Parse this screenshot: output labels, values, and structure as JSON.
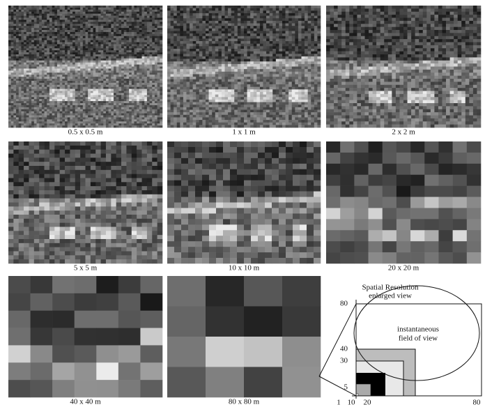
{
  "panels": [
    {
      "caption": "0.5 x 0.5 m"
    },
    {
      "caption": "1 x 1 m"
    },
    {
      "caption": "2 x 2 m"
    },
    {
      "caption": "5 x 5 m"
    },
    {
      "caption": "10 x 10 m"
    },
    {
      "caption": "20 x 20 m"
    },
    {
      "caption": "40 x 40 m"
    },
    {
      "caption": "80 x 80 m"
    }
  ],
  "diagram": {
    "title": "Spatial Resolution",
    "subtitle": "enlarged view",
    "ifov_label": [
      "instantaneous",
      "field of view"
    ],
    "y_labels": [
      "80",
      "40",
      "30",
      "5"
    ],
    "x_labels": [
      "1",
      "10",
      "20",
      "80"
    ]
  }
}
